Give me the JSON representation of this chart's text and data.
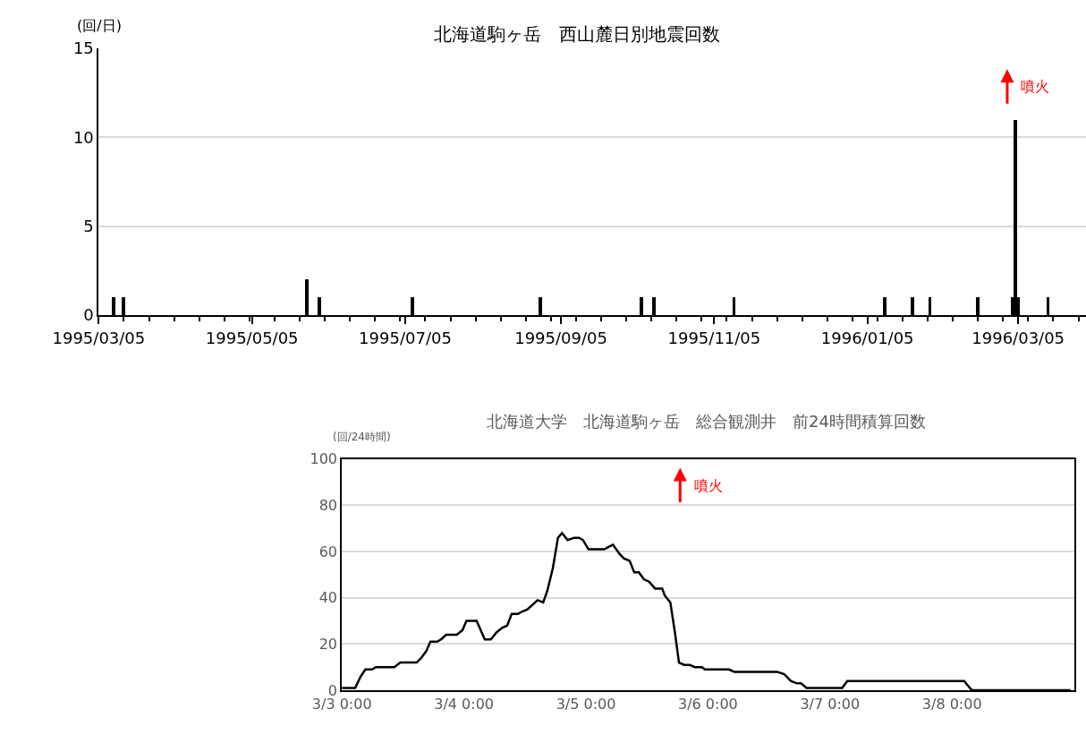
{
  "chart_data": [
    {
      "type": "bar",
      "title": "北海道駒ヶ岳　西山麓日別地震回数",
      "ylabel": "(回/日)",
      "x": [
        "1995-03-11",
        "1995-03-15",
        "1995-05-27",
        "1995-06-01",
        "1995-07-08",
        "1995-08-28",
        "1995-10-07",
        "1995-10-12",
        "1995-11-13",
        "1996-01-12",
        "1996-01-23",
        "1996-01-30",
        "1996-02-18",
        "1996-03-03",
        "1996-03-04",
        "1996-03-05",
        "1996-03-17"
      ],
      "values": [
        1,
        1,
        2,
        1,
        1,
        1,
        1,
        1,
        1,
        1,
        1,
        1,
        1,
        1,
        11,
        1,
        1
      ],
      "color": "#000000",
      "xlim": [
        "1995-03-05",
        "1996-04-01"
      ],
      "xticks": [
        {
          "value": "1995-03-05",
          "label": "1995/03/05"
        },
        {
          "value": "1995-05-05",
          "label": "1995/05/05"
        },
        {
          "value": "1995-07-05",
          "label": "1995/07/05"
        },
        {
          "value": "1995-09-05",
          "label": "1995/09/05"
        },
        {
          "value": "1995-11-05",
          "label": "1995/11/05"
        },
        {
          "value": "1996-01-05",
          "label": "1996/01/05"
        },
        {
          "value": "1996-03-05",
          "label": "1996/03/05"
        }
      ],
      "ylim": [
        0,
        15
      ],
      "yticks": [
        0,
        5,
        10,
        15
      ],
      "grid": "y",
      "legend": false,
      "annotations": [
        "噴火"
      ]
    },
    {
      "type": "line",
      "title": "北海道大学　北海道駒ヶ岳　総合観測井　前24時間積算回数",
      "ylabel": "(回/24時間)",
      "x": [
        "--03-03T00:00",
        "--03-03T02:36",
        "--03-03T03:42",
        "--03-03T04:36",
        "--03-03T05:54",
        "--03-03T06:42",
        "--03-03T10:18",
        "--03-03T11:30",
        "--03-03T14:42",
        "--03-03T15:36",
        "--03-03T16:36",
        "--03-03T17:24",
        "--03-03T18:42",
        "--03-03T19:30",
        "--03-03T20:30",
        "--03-03T22:36",
        "--03-03T23:42",
        "--03-04T00:30",
        "--03-04T02:30",
        "--03-04T04:06",
        "--03-04T05:18",
        "--03-04T06:24",
        "--03-04T07:30",
        "--03-04T08:30",
        "--03-04T09:24",
        "--03-04T10:36",
        "--03-04T11:24",
        "--03-04T12:30",
        "--03-04T13:30",
        "--03-04T14:30",
        "--03-04T15:36",
        "--03-04T16:24",
        "--03-04T17:30",
        "--03-04T18:30",
        "--03-04T19:18",
        "--03-04T20:24",
        "--03-04T21:42",
        "--03-04T22:36",
        "--03-04T23:24",
        "--03-05T00:30",
        "--03-05T03:36",
        "--03-05T05:18",
        "--03-05T06:36",
        "--03-05T07:30",
        "--03-05T08:36",
        "--03-05T09:30",
        "--03-05T10:24",
        "--03-05T11:24",
        "--03-05T12:24",
        "--03-05T13:36",
        "--03-05T15:00",
        "--03-05T15:30",
        "--03-05T16:36",
        "--03-05T17:30",
        "--03-05T18:18",
        "--03-05T19:18",
        "--03-05T20:24",
        "--03-05T21:24",
        "--03-05T22:48",
        "--03-05T23:24",
        "--03-06T04:06",
        "--03-06T05:12",
        "--03-06T13:36",
        "--03-06T15:00",
        "--03-06T16:18",
        "--03-06T17:30",
        "--03-06T18:18",
        "--03-06T19:24",
        "--03-07T02:24",
        "--03-07T03:24",
        "--03-08T02:24",
        "--03-08T03:30",
        "--03-08T04:00",
        "--03-08T23:18"
      ],
      "values": [
        1,
        1,
        6,
        9,
        9,
        10,
        10,
        12,
        12,
        14,
        17,
        21,
        21,
        22,
        24,
        24,
        26,
        30,
        30,
        22,
        22,
        25,
        27,
        28,
        33,
        33,
        34,
        35,
        37,
        39,
        38,
        43,
        53,
        66,
        68,
        65,
        66,
        66,
        65,
        61,
        61,
        63,
        59,
        57,
        56,
        51,
        51,
        48,
        47,
        44,
        44,
        41,
        38,
        25,
        12,
        11,
        11,
        10,
        10,
        9,
        9,
        8,
        8,
        7,
        4,
        3,
        3,
        1,
        1,
        4,
        4,
        1,
        0,
        0
      ],
      "color": "#000000",
      "line_style": "solid",
      "marker": "none",
      "xlim": [
        "--03-03T00:00",
        "--03-09T00:00"
      ],
      "xticks": [
        {
          "value": "--03-03T00:00",
          "label": "3/3 0:00"
        },
        {
          "value": "--03-04T00:00",
          "label": "3/4 0:00"
        },
        {
          "value": "--03-05T00:00",
          "label": "3/5 0:00"
        },
        {
          "value": "--03-06T00:00",
          "label": "3/6 0:00"
        },
        {
          "value": "--03-07T00:00",
          "label": "3/7 0:00"
        },
        {
          "value": "--03-08T00:00",
          "label": "3/8 0:00"
        }
      ],
      "ylim": [
        0,
        100
      ],
      "yticks": [
        0,
        20,
        40,
        60,
        80,
        100
      ],
      "grid": "y",
      "legend": false,
      "annotations": [
        "噴火"
      ]
    }
  ]
}
